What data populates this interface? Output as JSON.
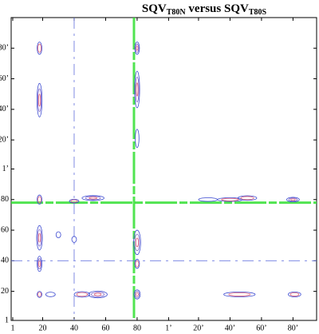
{
  "chart_data": {
    "type": "contour",
    "title": {
      "part1": "SQV",
      "sub1": "T80N",
      "part2": " versus SQV",
      "sub2": "T80S"
    },
    "xlim": [
      0,
      194
    ],
    "ylim": [
      1,
      199
    ],
    "xticks": [
      1,
      20,
      40,
      60,
      80,
      {
        "value": 100,
        "label": "1’"
      },
      {
        "value": 119,
        "label": "20’"
      },
      {
        "value": 139,
        "label": "40’"
      },
      {
        "value": 159,
        "label": "60’"
      },
      {
        "value": 179,
        "label": "80’"
      }
    ],
    "yticks": [
      1,
      20,
      40,
      60,
      80,
      {
        "value": 100,
        "label": "1’"
      },
      {
        "value": 119,
        "label": "20’"
      },
      {
        "value": 139,
        "label": "40’"
      },
      {
        "value": 159,
        "label": "60’"
      },
      {
        "value": 179,
        "label": "80’"
      }
    ],
    "level_colors": [
      "#3a48d0",
      "#7a60c8",
      "#e0607a"
    ],
    "guide_lines": [
      {
        "axis": "x",
        "value": 78,
        "color": "#33e033"
      },
      {
        "axis": "y",
        "value": 78,
        "color": "#33e033"
      },
      {
        "axis": "x",
        "value": 40,
        "color": "#6a78e0"
      },
      {
        "axis": "y",
        "value": 40,
        "color": "#6a78e0"
      }
    ],
    "peaks": {
      "x": [
        18,
        18,
        18,
        18,
        18,
        18,
        80,
        80,
        80,
        80,
        80,
        80,
        52,
        40,
        125,
        139,
        150,
        179,
        55,
        45,
        25,
        145,
        180,
        30,
        40
      ],
      "y": [
        179,
        145,
        80,
        55,
        38,
        18,
        179,
        152,
        120,
        52,
        38,
        18,
        81,
        79,
        80,
        80,
        81,
        80,
        18,
        18,
        18,
        18,
        18,
        57,
        54
      ],
      "sx": [
        1.5,
        1.6,
        1.5,
        1.8,
        1.5,
        1.5,
        1.5,
        1.6,
        1.2,
        2.2,
        1.5,
        2,
        7,
        3,
        6,
        8,
        6,
        4,
        6,
        5,
        3,
        10,
        4,
        1.5,
        1.5
      ],
      "sy": [
        4,
        11,
        3,
        8,
        5,
        2,
        4,
        12,
        6,
        8,
        3,
        3,
        1.6,
        1.2,
        1.2,
        1.2,
        1.5,
        1.5,
        2.2,
        1.8,
        1.5,
        1.6,
        1.6,
        2,
        2
      ],
      "levels": [
        2,
        3,
        2,
        3,
        3,
        2,
        3,
        3,
        1,
        3,
        2,
        3,
        3,
        2,
        1,
        2,
        2,
        3,
        3,
        2,
        1,
        2,
        2,
        1,
        1
      ]
    }
  }
}
